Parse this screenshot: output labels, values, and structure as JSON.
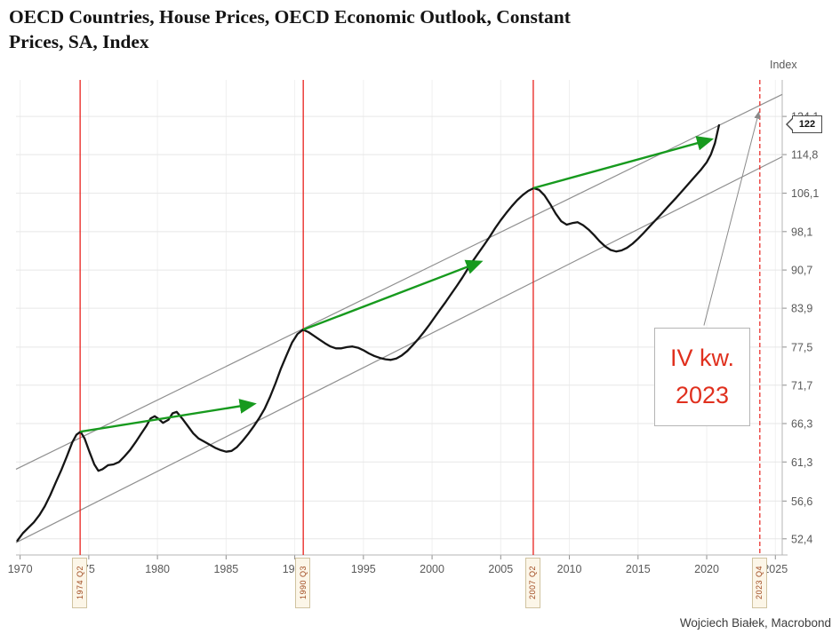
{
  "title_line1": "OECD Countries, House Prices, OECD Economic Outlook, Constant",
  "title_line2": "Prices, SA, Index",
  "y_axis_title": "Index",
  "credit": "Wojciech Białek, Macrobond",
  "value_flag": {
    "label": "122",
    "value": 122
  },
  "annotation": {
    "line1": "IV kw.",
    "line2": "2023"
  },
  "colors": {
    "series": "#151515",
    "trend": "#8f8f8f",
    "event": "#e8211d",
    "arrow": "#179a1e",
    "leader": "#8a8a8a",
    "annotation_text": "#e0301e",
    "grid_h": "#e7e7e7",
    "grid_v": "#f0f0f0",
    "axis": "#b5b5b5",
    "axis_tick": "#8e8e8e",
    "tick_label": "#595959",
    "flag_bg": "#fcf6e8",
    "flag_border": "#d0c3a0",
    "flag_text": "#a04a20"
  },
  "chart_data": {
    "type": "line",
    "title": "OECD Countries, House Prices, OECD Economic Outlook, Constant Prices, SA, Index",
    "y_scale": "log",
    "grid": true,
    "legend": "none",
    "x_range": [
      1969.7,
      2025.5
    ],
    "y_range": [
      50.7,
      133.7
    ],
    "x_ticks": [
      {
        "value": 1970,
        "label": "1970"
      },
      {
        "value": 1975,
        "label": "75"
      },
      {
        "value": 1980,
        "label": "1980"
      },
      {
        "value": 1985,
        "label": "1985"
      },
      {
        "value": 1990,
        "label": "1990"
      },
      {
        "value": 1995,
        "label": "1995"
      },
      {
        "value": 2000,
        "label": "2000"
      },
      {
        "value": 2005,
        "label": "2005"
      },
      {
        "value": 2010,
        "label": "2010"
      },
      {
        "value": 2015,
        "label": "2015"
      },
      {
        "value": 2020,
        "label": "2020"
      },
      {
        "value": 2025,
        "label": "2025"
      }
    ],
    "y_ticks": [
      {
        "value": 52.4,
        "label": "52,4"
      },
      {
        "value": 56.6,
        "label": "56,6"
      },
      {
        "value": 61.3,
        "label": "61,3"
      },
      {
        "value": 66.3,
        "label": "66,3"
      },
      {
        "value": 71.7,
        "label": "71,7"
      },
      {
        "value": 77.5,
        "label": "77,5"
      },
      {
        "value": 83.9,
        "label": "83,9"
      },
      {
        "value": 90.7,
        "label": "90,7"
      },
      {
        "value": 98.1,
        "label": "98,1"
      },
      {
        "value": 106.1,
        "label": "106,1"
      },
      {
        "value": 114.8,
        "label": "114,8"
      },
      {
        "value": 124.1,
        "label": "124,1"
      }
    ],
    "series": [
      {
        "name": "OECD house prices, constant prices, SA, index",
        "color": "#151515",
        "points": [
          [
            1969.8,
            52.2
          ],
          [
            1970.2,
            53.0
          ],
          [
            1970.6,
            53.6
          ],
          [
            1971.0,
            54.2
          ],
          [
            1971.4,
            55.0
          ],
          [
            1971.8,
            56.0
          ],
          [
            1972.2,
            57.3
          ],
          [
            1972.6,
            58.8
          ],
          [
            1973.0,
            60.3
          ],
          [
            1973.4,
            62.0
          ],
          [
            1973.8,
            63.8
          ],
          [
            1974.1,
            64.8
          ],
          [
            1974.4,
            65.2
          ],
          [
            1974.7,
            64.3
          ],
          [
            1975.0,
            62.8
          ],
          [
            1975.4,
            61.0
          ],
          [
            1975.7,
            60.2
          ],
          [
            1976.0,
            60.4
          ],
          [
            1976.4,
            60.9
          ],
          [
            1976.8,
            61.0
          ],
          [
            1977.2,
            61.3
          ],
          [
            1977.6,
            62.0
          ],
          [
            1978.0,
            62.8
          ],
          [
            1978.4,
            63.8
          ],
          [
            1978.8,
            64.9
          ],
          [
            1979.2,
            66.0
          ],
          [
            1979.5,
            67.0
          ],
          [
            1979.8,
            67.3
          ],
          [
            1980.1,
            66.9
          ],
          [
            1980.4,
            66.4
          ],
          [
            1980.8,
            66.8
          ],
          [
            1981.1,
            67.7
          ],
          [
            1981.4,
            67.9
          ],
          [
            1981.8,
            67.0
          ],
          [
            1982.2,
            66.0
          ],
          [
            1982.6,
            65.0
          ],
          [
            1983.0,
            64.3
          ],
          [
            1983.4,
            63.9
          ],
          [
            1983.8,
            63.5
          ],
          [
            1984.2,
            63.1
          ],
          [
            1984.6,
            62.8
          ],
          [
            1985.0,
            62.6
          ],
          [
            1985.4,
            62.7
          ],
          [
            1985.8,
            63.2
          ],
          [
            1986.2,
            64.0
          ],
          [
            1986.6,
            64.9
          ],
          [
            1987.0,
            65.9
          ],
          [
            1987.4,
            67.0
          ],
          [
            1987.8,
            68.3
          ],
          [
            1988.2,
            70.0
          ],
          [
            1988.6,
            72.0
          ],
          [
            1989.0,
            74.2
          ],
          [
            1989.4,
            76.2
          ],
          [
            1989.8,
            78.2
          ],
          [
            1990.2,
            79.6
          ],
          [
            1990.6,
            80.3
          ],
          [
            1991.0,
            79.9
          ],
          [
            1991.4,
            79.3
          ],
          [
            1991.8,
            78.7
          ],
          [
            1992.2,
            78.1
          ],
          [
            1992.6,
            77.6
          ],
          [
            1993.0,
            77.3
          ],
          [
            1993.4,
            77.3
          ],
          [
            1993.8,
            77.5
          ],
          [
            1994.2,
            77.6
          ],
          [
            1994.6,
            77.4
          ],
          [
            1995.0,
            77.0
          ],
          [
            1995.4,
            76.5
          ],
          [
            1995.8,
            76.1
          ],
          [
            1996.2,
            75.8
          ],
          [
            1996.6,
            75.6
          ],
          [
            1997.0,
            75.5
          ],
          [
            1997.4,
            75.7
          ],
          [
            1997.8,
            76.2
          ],
          [
            1998.2,
            76.9
          ],
          [
            1998.6,
            77.8
          ],
          [
            1999.0,
            78.8
          ],
          [
            1999.4,
            79.9
          ],
          [
            1999.8,
            81.1
          ],
          [
            2000.2,
            82.4
          ],
          [
            2000.6,
            83.7
          ],
          [
            2001.0,
            85.0
          ],
          [
            2001.4,
            86.4
          ],
          [
            2001.8,
            87.8
          ],
          [
            2002.2,
            89.3
          ],
          [
            2002.6,
            90.9
          ],
          [
            2003.0,
            92.5
          ],
          [
            2003.4,
            94.0
          ],
          [
            2003.8,
            95.5
          ],
          [
            2004.2,
            97.1
          ],
          [
            2004.6,
            98.8
          ],
          [
            2005.0,
            100.4
          ],
          [
            2005.4,
            101.9
          ],
          [
            2005.8,
            103.3
          ],
          [
            2006.2,
            104.6
          ],
          [
            2006.6,
            105.7
          ],
          [
            2007.0,
            106.6
          ],
          [
            2007.4,
            107.2
          ],
          [
            2007.8,
            106.8
          ],
          [
            2008.2,
            105.6
          ],
          [
            2008.6,
            103.8
          ],
          [
            2009.0,
            101.8
          ],
          [
            2009.4,
            100.2
          ],
          [
            2009.8,
            99.5
          ],
          [
            2010.2,
            99.8
          ],
          [
            2010.6,
            100.0
          ],
          [
            2011.0,
            99.4
          ],
          [
            2011.4,
            98.5
          ],
          [
            2011.8,
            97.4
          ],
          [
            2012.2,
            96.2
          ],
          [
            2012.6,
            95.2
          ],
          [
            2013.0,
            94.5
          ],
          [
            2013.4,
            94.2
          ],
          [
            2013.8,
            94.4
          ],
          [
            2014.2,
            94.9
          ],
          [
            2014.6,
            95.7
          ],
          [
            2015.0,
            96.7
          ],
          [
            2015.4,
            97.8
          ],
          [
            2016.0,
            99.6
          ],
          [
            2016.6,
            101.4
          ],
          [
            2017.2,
            103.3
          ],
          [
            2017.8,
            105.2
          ],
          [
            2018.4,
            107.2
          ],
          [
            2019.0,
            109.3
          ],
          [
            2019.6,
            111.4
          ],
          [
            2020.0,
            113.0
          ],
          [
            2020.3,
            114.8
          ],
          [
            2020.6,
            117.5
          ],
          [
            2020.9,
            121.9
          ]
        ]
      }
    ],
    "trend_channel": [
      {
        "name": "upper-trend-line",
        "x1": 1969.7,
        "v1": 60.4,
        "x2": 2025.5,
        "v2": 129.8
      },
      {
        "name": "lower-trend-line",
        "x1": 1969.7,
        "v1": 52.0,
        "x2": 2025.5,
        "v2": 114.3
      }
    ],
    "event_lines": [
      {
        "x": 1974.37,
        "label": "1974 Q2",
        "style": "solid"
      },
      {
        "x": 1990.62,
        "label": "1990 Q3",
        "style": "solid"
      },
      {
        "x": 2007.37,
        "label": "2007 Q2",
        "style": "solid"
      },
      {
        "x": 2023.87,
        "label": "2023 Q4",
        "style": "dashed"
      }
    ],
    "trend_arrows": [
      {
        "x1": 1974.37,
        "v1": 65.2,
        "x2": 1987.0,
        "v2": 69.0
      },
      {
        "x1": 1990.62,
        "v1": 80.3,
        "x2": 2003.5,
        "v2": 92.2
      },
      {
        "x1": 2007.37,
        "v1": 107.2,
        "x2": 2020.3,
        "v2": 118.4
      }
    ],
    "leader_arrow": {
      "x1": 2019.8,
      "v1": 81.0,
      "x2": 2023.8,
      "v2": 125.2
    },
    "last_value": 122
  }
}
